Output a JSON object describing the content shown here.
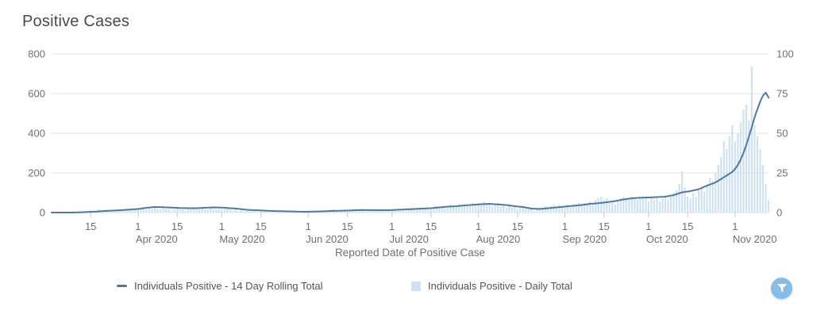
{
  "title": "Positive Cases",
  "x_axis": {
    "title": "Reported Date of Positive Case",
    "ticks": [
      {
        "day": 14,
        "label": "15"
      },
      {
        "day": 31,
        "label": "1",
        "month": "Apr 2020"
      },
      {
        "day": 45,
        "label": "15"
      },
      {
        "day": 61,
        "label": "1",
        "month": "May 2020"
      },
      {
        "day": 75,
        "label": "15"
      },
      {
        "day": 92,
        "label": "1",
        "month": "Jun 2020"
      },
      {
        "day": 106,
        "label": "15"
      },
      {
        "day": 122,
        "label": "1",
        "month": "Jul 2020"
      },
      {
        "day": 136,
        "label": "15"
      },
      {
        "day": 153,
        "label": "1",
        "month": "Aug 2020"
      },
      {
        "day": 167,
        "label": "15"
      },
      {
        "day": 184,
        "label": "1",
        "month": "Sep 2020"
      },
      {
        "day": 198,
        "label": "15"
      },
      {
        "day": 214,
        "label": "1",
        "month": "Oct 2020"
      },
      {
        "day": 228,
        "label": "15"
      },
      {
        "day": 245,
        "label": "1",
        "month": "Nov 2020"
      }
    ]
  },
  "y_axis_left": {
    "ticks": [
      0,
      200,
      400,
      600,
      800
    ],
    "max": 800
  },
  "y_axis_right": {
    "ticks": [
      0,
      25,
      50,
      75,
      100
    ],
    "max": 100
  },
  "legend": [
    {
      "label": "Individuals Positive - 14 Day Rolling Total",
      "marker": "line-dash"
    },
    {
      "label": "Individuals Positive - Daily Total",
      "marker": "square"
    }
  ],
  "filter_button": {
    "icon": "funnel-icon"
  },
  "colors": {
    "line": "#4e79a7",
    "bar": "#cfe2f3",
    "grid": "#e2e2e2",
    "tick": "#c9c9c9",
    "axis_text": "#6f6f6f",
    "title_text": "#4a4a4a",
    "legend_text": "#555555",
    "filter_bg": "#85bce8"
  },
  "chart_data": {
    "type": "line+bar",
    "title": "Positive Cases",
    "xlabel": "Reported Date of Positive Case",
    "x_start_date": "2020-03-01",
    "x_end_date": "2020-11-13",
    "x_domain_days": 258,
    "ylim_left": [
      0,
      800
    ],
    "ylim_right": [
      0,
      100
    ],
    "grid": "horizontal",
    "legend_position": "bottom",
    "series": [
      {
        "name": "Individuals Positive - 14 Day Rolling Total",
        "type": "line",
        "axis": "left",
        "points": [
          [
            0,
            0
          ],
          [
            4,
            0
          ],
          [
            7,
            0
          ],
          [
            10,
            1
          ],
          [
            13,
            3
          ],
          [
            16,
            5
          ],
          [
            19,
            8
          ],
          [
            22,
            10
          ],
          [
            25,
            12
          ],
          [
            28,
            15
          ],
          [
            31,
            18
          ],
          [
            34,
            24
          ],
          [
            37,
            28
          ],
          [
            40,
            27
          ],
          [
            43,
            25
          ],
          [
            46,
            23
          ],
          [
            49,
            22
          ],
          [
            52,
            22
          ],
          [
            55,
            24
          ],
          [
            58,
            26
          ],
          [
            61,
            25
          ],
          [
            64,
            22
          ],
          [
            67,
            19
          ],
          [
            70,
            14
          ],
          [
            73,
            12
          ],
          [
            76,
            10
          ],
          [
            79,
            8
          ],
          [
            82,
            7
          ],
          [
            85,
            6
          ],
          [
            88,
            5
          ],
          [
            91,
            4
          ],
          [
            94,
            5
          ],
          [
            97,
            6
          ],
          [
            100,
            8
          ],
          [
            103,
            9
          ],
          [
            106,
            10
          ],
          [
            109,
            12
          ],
          [
            112,
            13
          ],
          [
            115,
            12
          ],
          [
            118,
            12
          ],
          [
            121,
            12
          ],
          [
            124,
            14
          ],
          [
            127,
            16
          ],
          [
            130,
            18
          ],
          [
            133,
            20
          ],
          [
            136,
            22
          ],
          [
            139,
            26
          ],
          [
            142,
            30
          ],
          [
            145,
            32
          ],
          [
            148,
            36
          ],
          [
            151,
            39
          ],
          [
            154,
            42
          ],
          [
            157,
            44
          ],
          [
            160,
            41
          ],
          [
            163,
            38
          ],
          [
            166,
            32
          ],
          [
            169,
            28
          ],
          [
            172,
            20
          ],
          [
            175,
            18
          ],
          [
            178,
            22
          ],
          [
            181,
            26
          ],
          [
            184,
            30
          ],
          [
            187,
            34
          ],
          [
            190,
            38
          ],
          [
            193,
            44
          ],
          [
            196,
            47
          ],
          [
            199,
            52
          ],
          [
            202,
            58
          ],
          [
            205,
            66
          ],
          [
            208,
            72
          ],
          [
            211,
            75
          ],
          [
            214,
            76
          ],
          [
            217,
            78
          ],
          [
            220,
            80
          ],
          [
            223,
            88
          ],
          [
            226,
            102
          ],
          [
            229,
            108
          ],
          [
            232,
            118
          ],
          [
            235,
            136
          ],
          [
            238,
            152
          ],
          [
            241,
            178
          ],
          [
            244,
            205
          ],
          [
            245,
            220
          ],
          [
            246,
            240
          ],
          [
            247,
            268
          ],
          [
            248,
            300
          ],
          [
            249,
            340
          ],
          [
            250,
            385
          ],
          [
            251,
            430
          ],
          [
            252,
            480
          ],
          [
            253,
            520
          ],
          [
            254,
            560
          ],
          [
            255,
            590
          ],
          [
            256,
            605
          ],
          [
            257,
            580
          ]
        ]
      },
      {
        "name": "Individuals Positive - Daily Total",
        "type": "bar",
        "axis": "right",
        "daily_values": [
          0,
          0,
          0,
          0,
          0,
          0,
          0,
          0,
          1,
          0,
          1,
          0,
          1,
          1,
          0,
          1,
          1,
          2,
          1,
          1,
          2,
          1,
          1,
          2,
          1,
          2,
          1,
          2,
          2,
          1,
          2,
          2,
          2,
          3,
          2,
          3,
          2,
          3,
          2,
          2,
          3,
          2,
          2,
          1,
          2,
          3,
          2,
          2,
          1,
          2,
          2,
          3,
          2,
          2,
          3,
          2,
          2,
          3,
          2,
          2,
          2,
          2,
          2,
          3,
          2,
          1,
          2,
          1,
          2,
          1,
          1,
          2,
          1,
          1,
          0,
          1,
          1,
          1,
          0,
          1,
          1,
          0,
          1,
          0,
          1,
          0,
          1,
          0,
          0,
          1,
          0,
          1,
          0,
          1,
          0,
          1,
          1,
          0,
          1,
          1,
          1,
          2,
          1,
          1,
          1,
          2,
          1,
          1,
          2,
          1,
          2,
          1,
          1,
          2,
          1,
          1,
          2,
          1,
          1,
          2,
          1,
          2,
          1,
          2,
          1,
          2,
          2,
          1,
          2,
          3,
          2,
          2,
          3,
          2,
          3,
          2,
          3,
          3,
          4,
          3,
          4,
          3,
          4,
          5,
          4,
          4,
          5,
          4,
          5,
          5,
          4,
          6,
          5,
          6,
          5,
          7,
          5,
          6,
          4,
          5,
          6,
          4,
          5,
          3,
          4,
          3,
          4,
          2,
          3,
          3,
          2,
          3,
          2,
          1,
          2,
          3,
          2,
          4,
          3,
          4,
          5,
          4,
          5,
          4,
          4,
          5,
          3,
          5,
          4,
          6,
          5,
          6,
          5,
          7,
          6,
          8,
          9,
          10,
          8,
          9,
          6,
          7,
          5,
          8,
          9,
          10,
          9,
          8,
          10,
          9,
          8,
          9,
          10,
          9,
          7,
          9,
          8,
          10,
          7,
          9,
          11,
          8,
          10,
          12,
          14,
          18,
          26,
          16,
          10,
          9,
          12,
          10,
          14,
          16,
          13,
          18,
          22,
          20,
          25,
          30,
          35,
          45,
          40,
          48,
          55,
          45,
          50,
          57,
          65,
          68,
          58,
          92,
          55,
          48,
          40,
          30,
          18,
          8
        ]
      }
    ]
  }
}
